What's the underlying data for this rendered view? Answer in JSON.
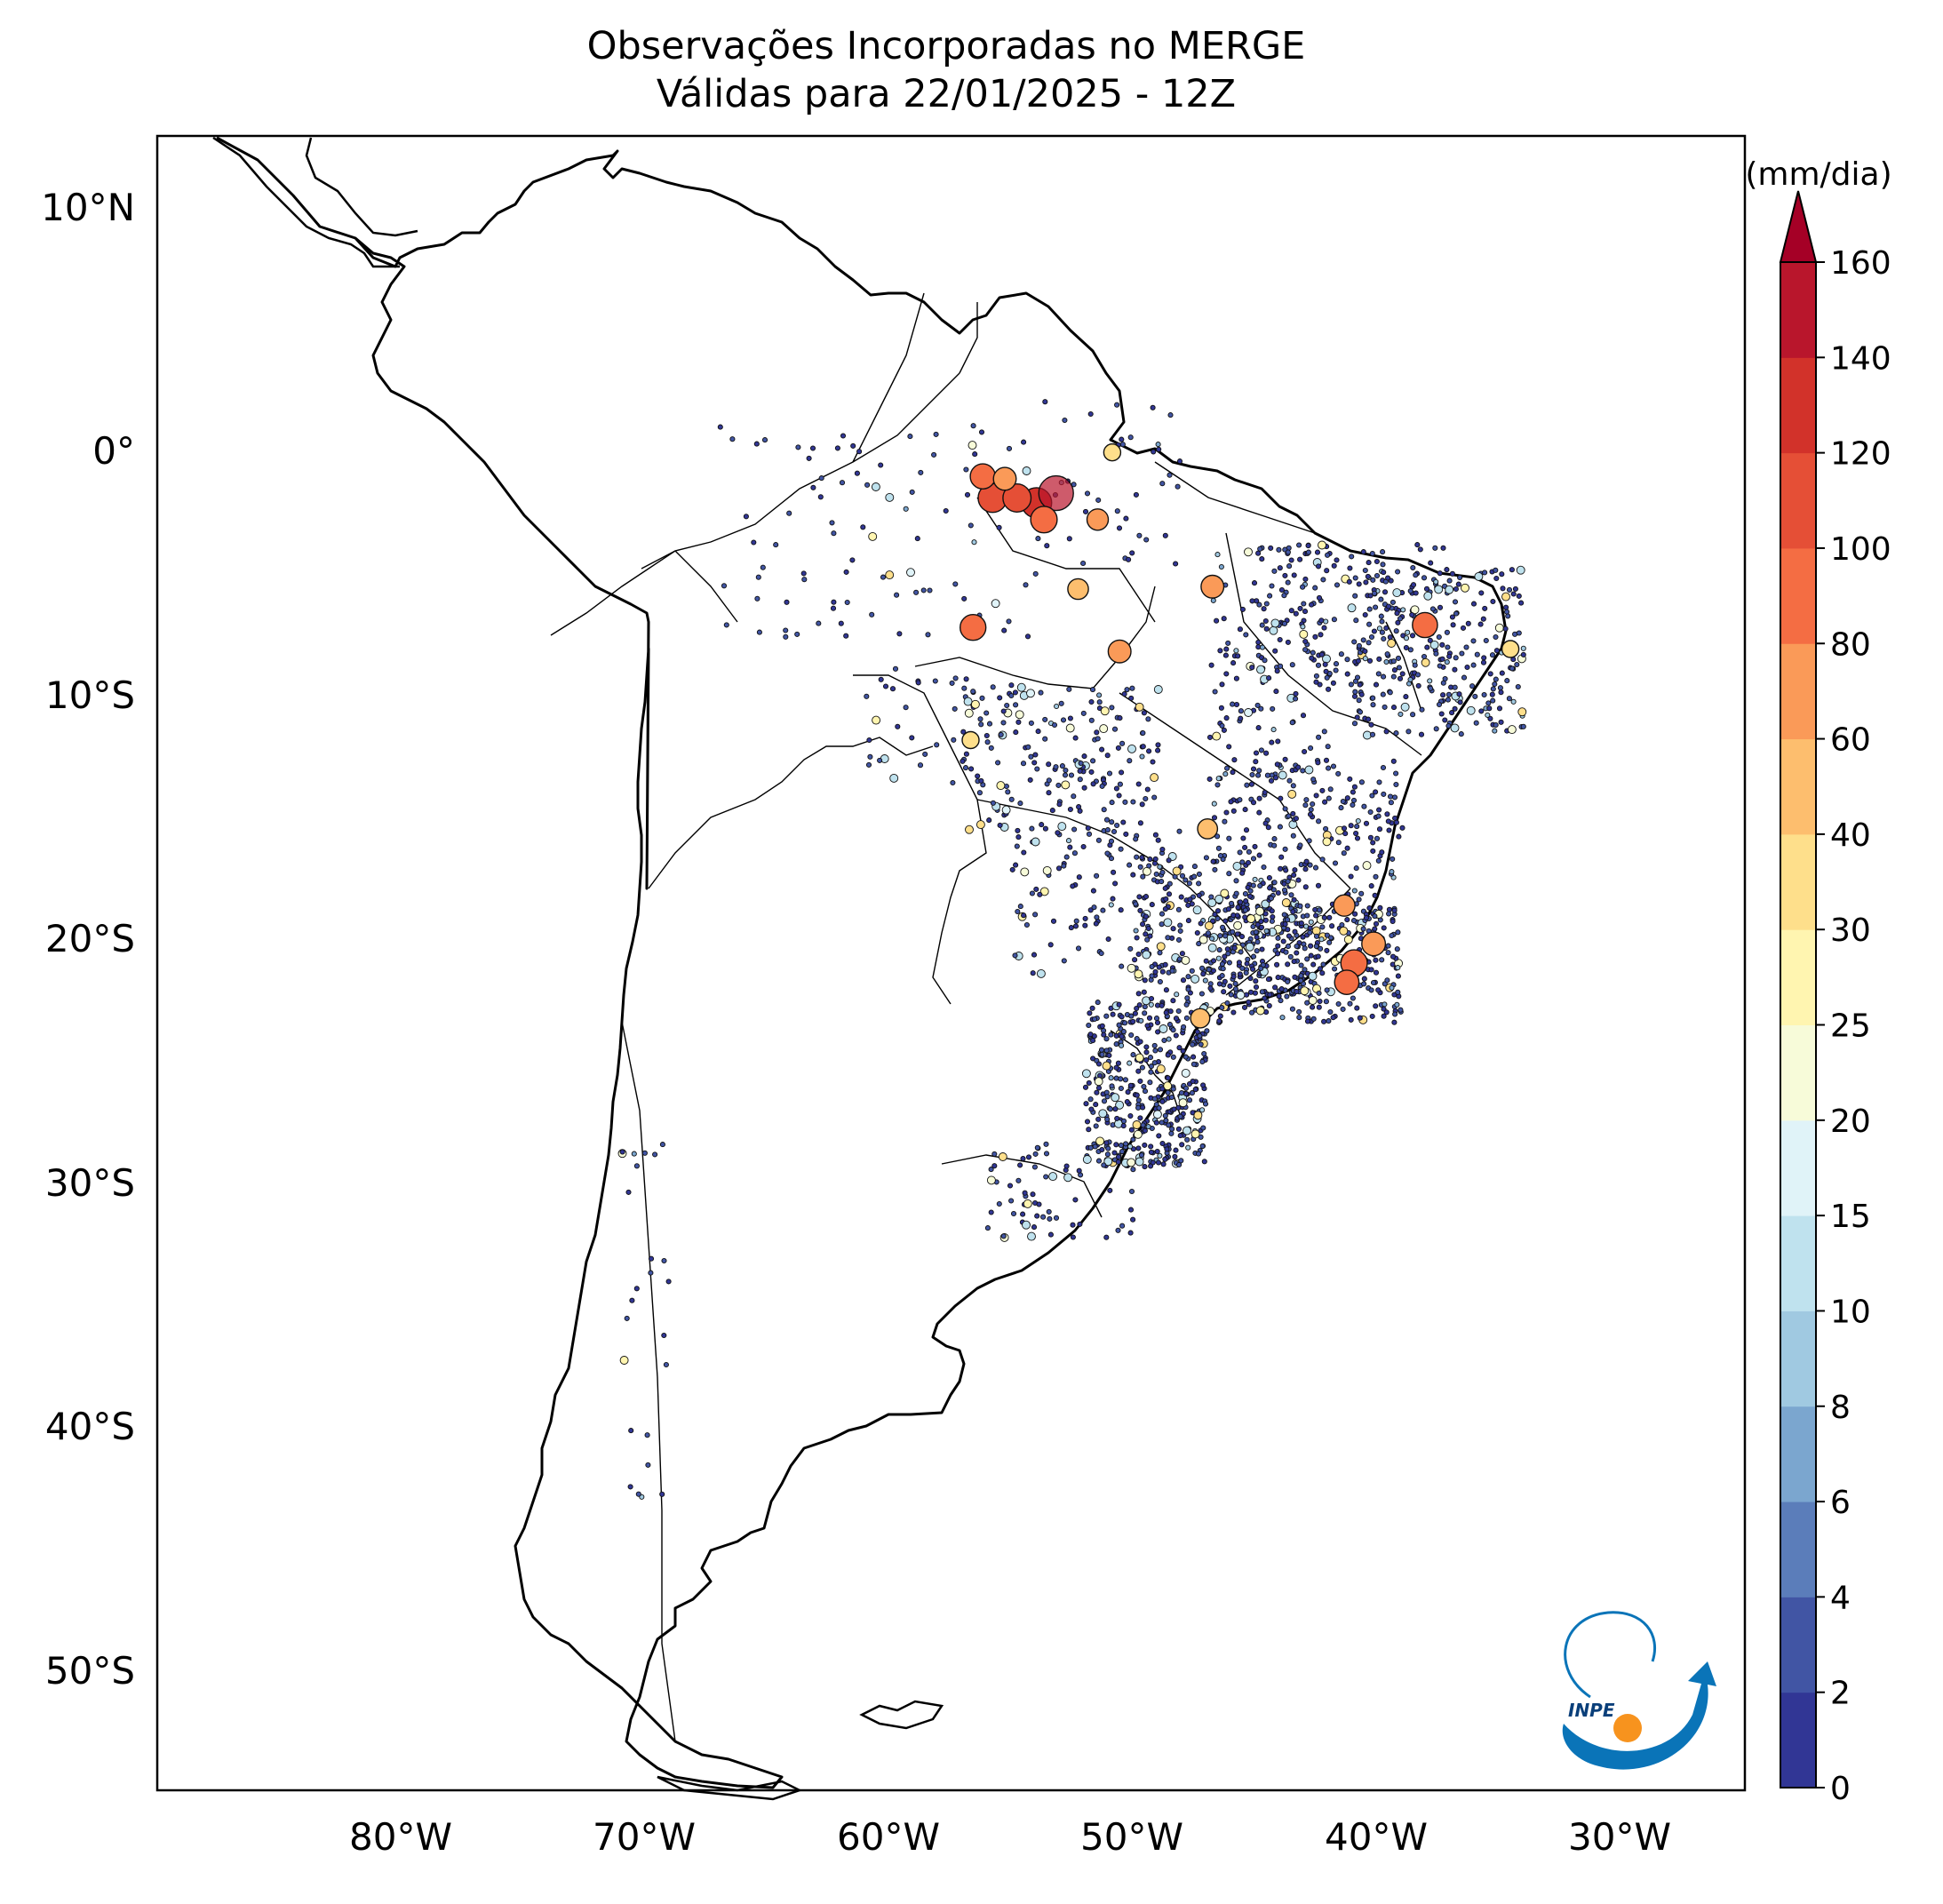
{
  "title": "Observações Incorporadas no MERGE",
  "subtitle": "Válidas para 22/01/2025 - 12Z",
  "map": {
    "lat_labels": [
      "10°N",
      "0°",
      "10°S",
      "20°S",
      "30°S",
      "40°S",
      "50°S"
    ],
    "lon_labels": [
      "80°W",
      "70°W",
      "60°W",
      "50°W",
      "40°W",
      "30°W"
    ],
    "extent": {
      "lon": [
        -91,
        -26
      ],
      "lat": [
        -56,
        13
      ]
    }
  },
  "colorbar": {
    "unit": "(mm/dia)",
    "ticks": [
      "0",
      "2",
      "4",
      "6",
      "8",
      "10",
      "15",
      "20",
      "25",
      "30",
      "40",
      "60",
      "80",
      "100",
      "120",
      "140",
      "160"
    ],
    "colors": [
      "#313695",
      "#4155a4",
      "#5b7dba",
      "#7ba6cf",
      "#a0c9e1",
      "#bfe2ee",
      "#e0f3f8",
      "#f7fbd9",
      "#fff5b0",
      "#fedf8b",
      "#fdbe6e",
      "#fa9a58",
      "#f46d43",
      "#e54f36",
      "#d2322a",
      "#b9162c",
      "#a50026"
    ]
  },
  "logo": {
    "text": "INPE",
    "colors": {
      "blue": "#0a74b8",
      "orange": "#f7931e"
    }
  },
  "chart_data": {
    "type": "scatter",
    "description_values": "precipitation observations (mm/dia)",
    "clusters": [
      {
        "lon": -55.0,
        "lat": -2.3,
        "value": 120
      },
      {
        "lon": -56.8,
        "lat": -2.1,
        "value": 110
      },
      {
        "lon": -55.8,
        "lat": -2.1,
        "value": 105
      },
      {
        "lon": -54.2,
        "lat": -1.9,
        "value": 150
      },
      {
        "lon": -54.7,
        "lat": -3.0,
        "value": 95
      },
      {
        "lon": -57.2,
        "lat": -1.2,
        "value": 85
      },
      {
        "lon": -56.3,
        "lat": -1.3,
        "value": 70
      },
      {
        "lon": -57.6,
        "lat": -7.5,
        "value": 90
      },
      {
        "lon": -39.1,
        "lat": -7.4,
        "value": 85
      },
      {
        "lon": -47.8,
        "lat": -5.8,
        "value": 70
      },
      {
        "lon": -42.0,
        "lat": -21.5,
        "value": 95
      },
      {
        "lon": -42.3,
        "lat": -22.3,
        "value": 80
      },
      {
        "lon": -41.2,
        "lat": -20.7,
        "value": 75
      },
      {
        "lon": -42.4,
        "lat": -19.1,
        "value": 60
      },
      {
        "lon": -51.6,
        "lat": -8.5,
        "value": 70
      },
      {
        "lon": -52.5,
        "lat": -3.0,
        "value": 60
      },
      {
        "lon": -53.3,
        "lat": -5.9,
        "value": 55
      },
      {
        "lon": -48.0,
        "lat": -15.9,
        "value": 50
      },
      {
        "lon": -48.3,
        "lat": -23.8,
        "value": 45
      },
      {
        "lon": -57.7,
        "lat": -12.2,
        "value": 30
      },
      {
        "lon": -51.9,
        "lat": -0.2,
        "value": 30
      },
      {
        "lon": -35.6,
        "lat": -8.4,
        "value": 30
      }
    ]
  }
}
